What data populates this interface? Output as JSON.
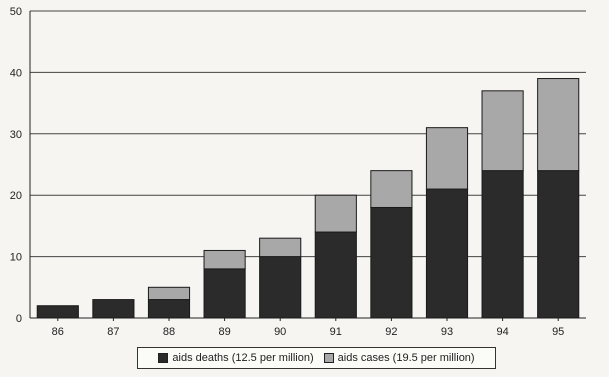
{
  "chart_data": {
    "type": "bar",
    "stacked": true,
    "categories": [
      "86",
      "87",
      "88",
      "89",
      "90",
      "91",
      "92",
      "93",
      "94",
      "95"
    ],
    "series": [
      {
        "name": "aids deaths (12.5 per million)",
        "values": [
          2,
          3,
          3,
          8,
          10,
          14,
          18,
          21,
          24,
          24
        ],
        "color": "#2b2b2b"
      },
      {
        "name": "aids cases (19.5 per million)",
        "values": [
          0,
          0,
          2,
          3,
          3,
          6,
          6,
          10,
          13,
          15
        ],
        "color": "#a8a8a8"
      }
    ],
    "title": "",
    "xlabel": "",
    "ylabel": "",
    "ylim": [
      0,
      50
    ],
    "yticks": [
      "0",
      "10",
      "20",
      "30",
      "40",
      "50"
    ],
    "grid": true,
    "legend": "bottom"
  }
}
